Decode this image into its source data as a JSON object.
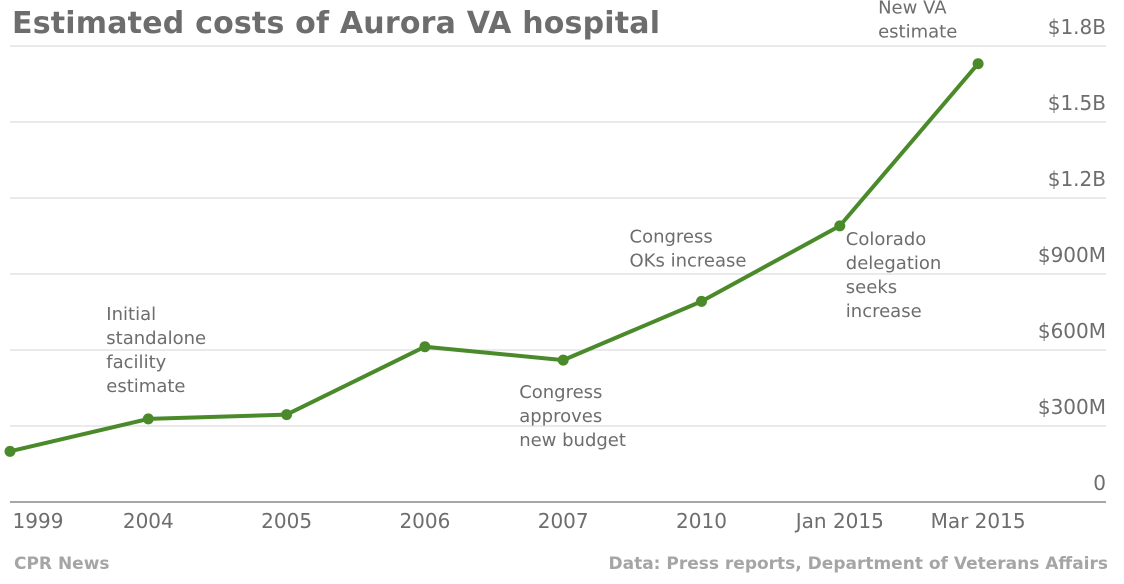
{
  "title": "Estimated costs of Aurora VA hospital",
  "footer": {
    "source_left": "CPR News",
    "source_right": "Data: Press reports, Department of Veterans Affairs"
  },
  "colors": {
    "line": "#4a8a2a",
    "grid": "#e3e3e3",
    "axis": "#8a8a8a",
    "text": "#6d6d6d",
    "footer": "#a5a5a5"
  },
  "chart_data": {
    "type": "line",
    "title": "Estimated costs of Aurora VA hospital",
    "xlabel": "",
    "ylabel": "",
    "categories": [
      "1999",
      "2004",
      "2005",
      "2006",
      "2007",
      "2010",
      "Jan 2015",
      "Mar 2015"
    ],
    "series": [
      {
        "values": [
          200,
          328,
          345,
          613,
          560,
          792,
          1090,
          1730
        ]
      }
    ],
    "ylim": [
      0,
      1800
    ],
    "y_ticks": [
      {
        "value": 0,
        "label": "0"
      },
      {
        "value": 300,
        "label": "$300M"
      },
      {
        "value": 600,
        "label": "$600M"
      },
      {
        "value": 900,
        "label": "$900M"
      },
      {
        "value": 1200,
        "label": "$1.2B"
      },
      {
        "value": 1500,
        "label": "$1.5B"
      },
      {
        "value": 1800,
        "label": "$1.8B"
      }
    ],
    "y_axis_side": "right",
    "grid": true,
    "legend": "none",
    "annotations": [
      {
        "point": "2004",
        "position": "above",
        "lines": [
          "Initial",
          "standalone",
          "facility",
          "estimate"
        ]
      },
      {
        "point": "2007",
        "position": "below",
        "lines": [
          "Congress",
          "approves",
          "new budget"
        ]
      },
      {
        "point": "2010",
        "position": "above-left",
        "lines": [
          "Congress",
          "OKs increase"
        ]
      },
      {
        "point": "Jan 2015",
        "position": "below-right",
        "lines": [
          "Colorado",
          "delegation",
          "seeks",
          "increase"
        ]
      },
      {
        "point": "Mar 2015",
        "position": "above-left",
        "lines": [
          "New VA",
          "estimate"
        ]
      }
    ]
  }
}
